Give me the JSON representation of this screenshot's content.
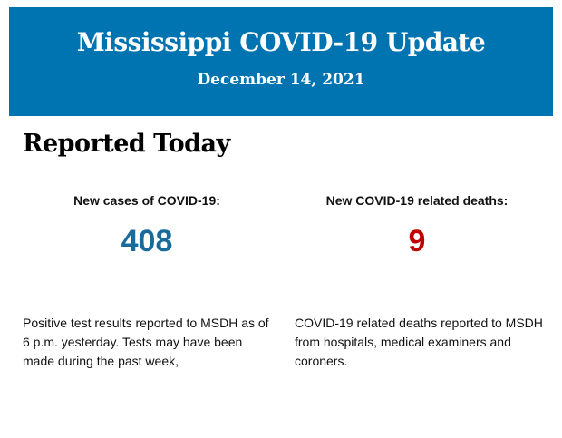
{
  "header": {
    "title": "Mississippi COVID-19 Update",
    "date": "December 14, 2021",
    "background_color": "#0074b1"
  },
  "section": {
    "heading": "Reported Today"
  },
  "cases": {
    "label": "New cases of COVID-19:",
    "value": "408",
    "color": "#1a6a9a",
    "description": "Positive test results reported to MSDH as of 6 p.m. yesterday. Tests may have been made during the past week,"
  },
  "deaths": {
    "label": "New COVID-19 related deaths:",
    "value": "9",
    "color": "#c00000",
    "description": "COVID-19 related deaths reported to MSDH from hospitals, medical examiners and coroners."
  }
}
